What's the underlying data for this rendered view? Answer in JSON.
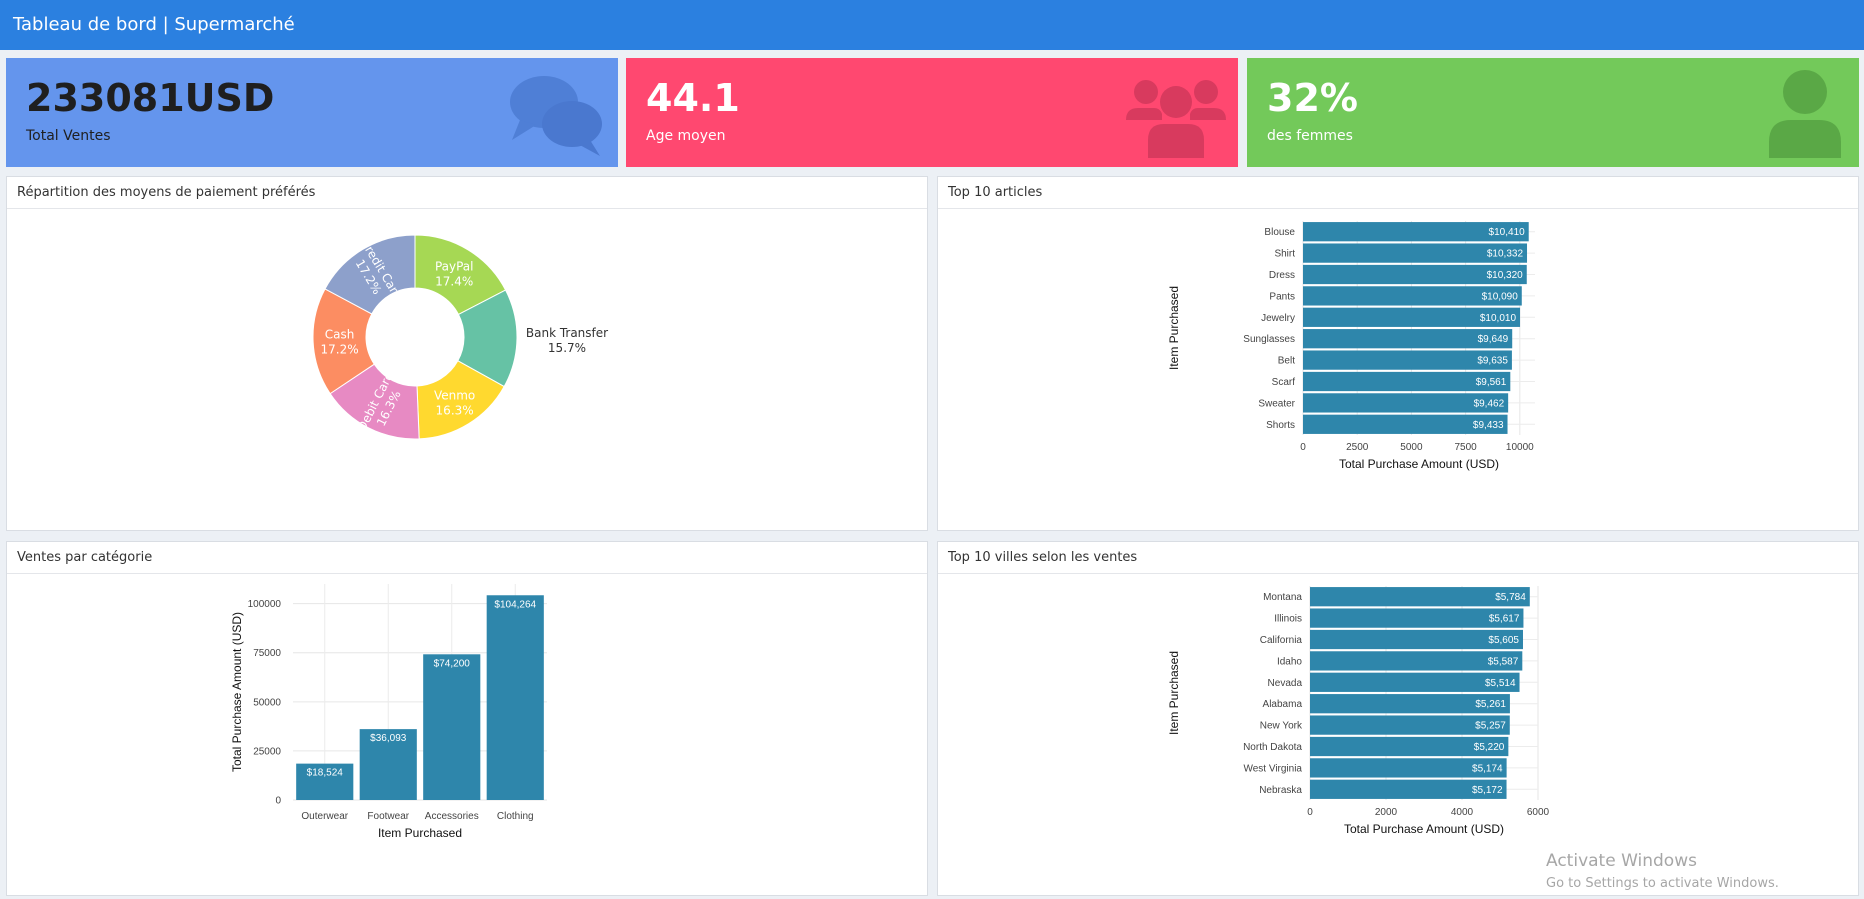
{
  "header": {
    "title": "Tableau de bord | Supermarché",
    "color": "#2b80e0"
  },
  "value_boxes": [
    {
      "value": "233081USD",
      "label": "Total Ventes",
      "icon": "comments-icon",
      "color": "#6495ed",
      "text_color": "#1f1f1f"
    },
    {
      "value": "44.1",
      "label": "Age moyen",
      "icon": "users-icon",
      "color": "#ff4870",
      "text_color": "#ffffff"
    },
    {
      "value": "32%",
      "label": "des femmes",
      "icon": "user-icon",
      "color": "#73c95a",
      "text_color": "#ffffff"
    }
  ],
  "panels": {
    "payment": {
      "title": "Répartition des moyens de paiement préférés"
    },
    "top_items": {
      "title": "Top 10 articles"
    },
    "category": {
      "title": "Ventes par catégorie"
    },
    "top_cities": {
      "title": "Top 10 villes selon les ventes"
    }
  },
  "chart_data": [
    {
      "id": "payment",
      "type": "pie",
      "donut": true,
      "slices": [
        {
          "label": "PayPal",
          "pct_label": "17.4%",
          "value": 17.4,
          "color": "#a6d854",
          "text_color": "#ffffff",
          "outside": false
        },
        {
          "label": "Bank Transfer",
          "pct_label": "15.7%",
          "value": 15.7,
          "color": "#66c2a5",
          "text_color": "#333333",
          "outside": true
        },
        {
          "label": "Venmo",
          "pct_label": "16.3%",
          "value": 16.3,
          "color": "#ffd92f",
          "text_color": "#ffffff",
          "outside": false
        },
        {
          "label": "Debit Card",
          "pct_label": "16.3%",
          "value": 16.3,
          "color": "#e78ac3",
          "text_color": "#ffffff",
          "outside": false,
          "rotate": true
        },
        {
          "label": "Cash",
          "pct_label": "17.2%",
          "value": 17.2,
          "color": "#fc8d62",
          "text_color": "#ffffff",
          "outside": false
        },
        {
          "label": "Credit Card",
          "pct_label": "17.2%",
          "value": 17.2,
          "color": "#8da0cb",
          "text_color": "#ffffff",
          "outside": false,
          "rotate": true
        }
      ]
    },
    {
      "id": "top_items",
      "type": "bar",
      "orientation": "horizontal",
      "categories": [
        "Blouse",
        "Shirt",
        "Dress",
        "Pants",
        "Jewelry",
        "Sunglasses",
        "Belt",
        "Scarf",
        "Sweater",
        "Shorts"
      ],
      "values": [
        10410,
        10332,
        10320,
        10090,
        10010,
        9649,
        9635,
        9561,
        9462,
        9433
      ],
      "value_labels": [
        "$10,410",
        "$10,332",
        "$10,320",
        "$10,090",
        "$10,010",
        "$9,649",
        "$9,635",
        "$9,561",
        "$9,462",
        "$9,433"
      ],
      "xlim": [
        0,
        10700
      ],
      "xticks": [
        0,
        2500,
        5000,
        7500,
        10000
      ],
      "xtick_labels": [
        "0",
        "2500",
        "5000",
        "7500",
        "10000"
      ],
      "xlabel": "Total Purchase Amount (USD)",
      "ylabel": "Item Purchased",
      "bar_color": "#2e86ab"
    },
    {
      "id": "category",
      "type": "bar",
      "orientation": "vertical",
      "categories": [
        "Outerwear",
        "Footwear",
        "Accessories",
        "Clothing"
      ],
      "values": [
        18524,
        36093,
        74200,
        104264
      ],
      "value_labels": [
        "$18,524",
        "$36,093",
        "$74,200",
        "$104,264"
      ],
      "ylim": [
        0,
        110000
      ],
      "yticks": [
        0,
        25000,
        50000,
        75000,
        100000
      ],
      "ytick_labels": [
        "0",
        "25000",
        "50000",
        "75000",
        "100000"
      ],
      "xlabel": "Item Purchased",
      "ylabel": "Total Purchase Amount (USD)",
      "bar_color": "#2e86ab"
    },
    {
      "id": "top_cities",
      "type": "bar",
      "orientation": "horizontal",
      "categories": [
        "Montana",
        "Illinois",
        "California",
        "Idaho",
        "Nevada",
        "Alabama",
        "New York",
        "North Dakota",
        "West Virginia",
        "Nebraska"
      ],
      "values": [
        5784,
        5617,
        5605,
        5587,
        5514,
        5261,
        5257,
        5220,
        5174,
        5172
      ],
      "value_labels": [
        "$5,784",
        "$5,617",
        "$5,605",
        "$5,587",
        "$5,514",
        "$5,261",
        "$5,257",
        "$5,220",
        "$5,174",
        "$5,172"
      ],
      "xlim": [
        0,
        6000
      ],
      "xticks": [
        0,
        2000,
        4000,
        6000
      ],
      "xtick_labels": [
        "0",
        "2000",
        "4000",
        "6000"
      ],
      "xlabel": "Total Purchase Amount (USD)",
      "ylabel": "Item Purchased",
      "bar_color": "#2e86ab"
    }
  ],
  "watermark": {
    "line1": "Activate Windows",
    "line2": "Go to Settings to activate Windows."
  }
}
